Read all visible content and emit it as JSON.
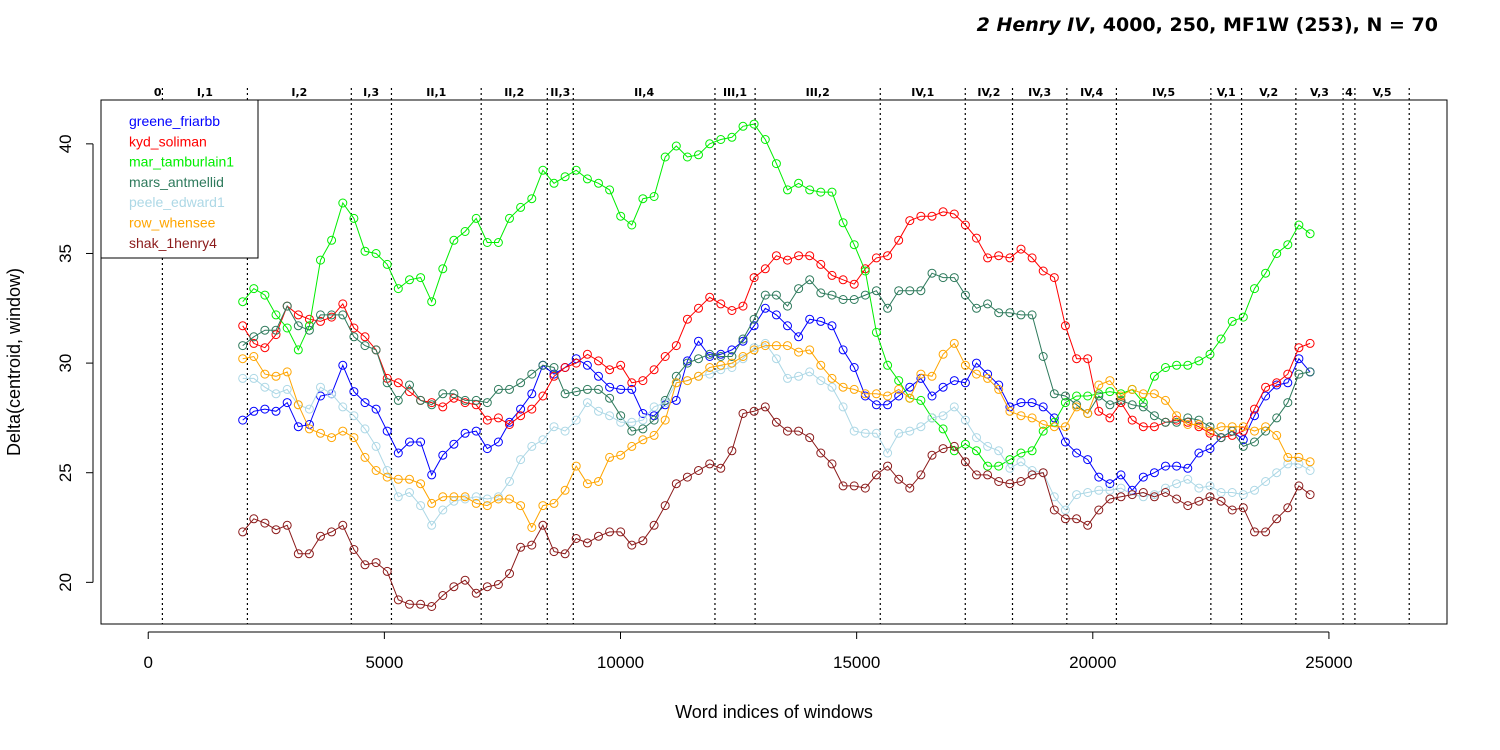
{
  "chart_data": {
    "type": "line",
    "title": {
      "italic_part": "2 Henry IV",
      "rest": ", 4000, 250, MF1W (253), N = 70"
    },
    "xlabel": "Word indices of windows",
    "ylabel": "Delta(centroid, window)",
    "xlim": [
      -1000,
      27500
    ],
    "ylim": [
      18.1,
      42
    ],
    "xticks": [
      0,
      5000,
      10000,
      15000,
      20000,
      25000
    ],
    "yticks": [
      20,
      25,
      30,
      35,
      40
    ],
    "legend_position": "top-left",
    "act_scene_boundaries": [
      {
        "x": 300,
        "label": "0",
        "label_x": 200
      },
      {
        "x": 2100,
        "label": "I,1",
        "label_x": 1200
      },
      {
        "x": 4300,
        "label": "I,2",
        "label_x": 3200
      },
      {
        "x": 5150,
        "label": "I,3",
        "label_x": 4720
      },
      {
        "x": 7050,
        "label": "II,1",
        "label_x": 6100
      },
      {
        "x": 8450,
        "label": "II,2",
        "label_x": 7750
      },
      {
        "x": 9000,
        "label": "II,3",
        "label_x": 8725
      },
      {
        "x": 12000,
        "label": "II,4",
        "label_x": 10500
      },
      {
        "x": 12850,
        "label": "III,1",
        "label_x": 12425
      },
      {
        "x": 15500,
        "label": "III,2",
        "label_x": 14175
      },
      {
        "x": 17300,
        "label": "IV,1",
        "label_x": 16400
      },
      {
        "x": 18300,
        "label": "IV,2",
        "label_x": 17800
      },
      {
        "x": 19450,
        "label": "IV,3",
        "label_x": 18875
      },
      {
        "x": 20500,
        "label": "IV,4",
        "label_x": 19975
      },
      {
        "x": 22500,
        "label": "IV,5",
        "label_x": 21500
      },
      {
        "x": 23150,
        "label": "V,1",
        "label_x": 22825
      },
      {
        "x": 24300,
        "label": "V,2",
        "label_x": 23725
      },
      {
        "x": 25300,
        "label": "V,3",
        "label_x": 24800
      },
      {
        "x": 25550,
        "label": "4",
        "label_x": 25425
      },
      {
        "x": 26700,
        "label": "V,5",
        "label_x": 26125
      }
    ],
    "series": [
      {
        "name": "greene_friarbb",
        "color": "#0000ff",
        "values": [
          27.4,
          27.8,
          27.9,
          27.8,
          28.2,
          27.1,
          27.2,
          28.5,
          28.6,
          29.9,
          28.7,
          28.2,
          27.9,
          26.9,
          25.9,
          26.4,
          26.4,
          24.9,
          25.8,
          26.3,
          26.8,
          26.9,
          26.1,
          26.4,
          27.3,
          27.9,
          28.6,
          29.9,
          29.5,
          29.8,
          30.2,
          29.9,
          29.4,
          28.9,
          28.8,
          28.8,
          27.7,
          27.6,
          28.1,
          28.3,
          30.1,
          31.0,
          30.3,
          30.4,
          30.6,
          31.0,
          31.7,
          32.5,
          32.2,
          31.7,
          31.2,
          32.0,
          31.9,
          31.7,
          30.6,
          29.8,
          28.5,
          28.1,
          28.1,
          28.5,
          28.9,
          29.3,
          28.5,
          28.9,
          29.2,
          29.1,
          30.0,
          29.5,
          29.0,
          28.0,
          28.2,
          28.2,
          28.0,
          27.5,
          26.4,
          25.9,
          25.6,
          24.8,
          24.5,
          24.9,
          24.2,
          24.8,
          25.0,
          25.3,
          25.3,
          25.2,
          25.9,
          26.1,
          26.6,
          26.9,
          26.5,
          27.6,
          28.5,
          29.0,
          29.1,
          30.2,
          29.6
        ]
      },
      {
        "name": "kyd_soliman",
        "color": "#ff0000",
        "values": [
          31.7,
          30.9,
          30.7,
          31.3,
          32.6,
          32.2,
          32.0,
          31.9,
          32.1,
          32.7,
          31.6,
          31.2,
          30.6,
          29.3,
          29.1,
          28.7,
          28.3,
          28.2,
          28.0,
          28.4,
          28.2,
          28.1,
          27.4,
          27.5,
          27.2,
          27.6,
          27.9,
          28.5,
          29.4,
          29.8,
          30.0,
          30.4,
          30.1,
          29.7,
          29.9,
          29.1,
          29.2,
          29.7,
          30.3,
          30.8,
          32.0,
          32.5,
          33.0,
          32.7,
          32.4,
          32.6,
          33.9,
          34.3,
          34.9,
          34.7,
          34.9,
          34.9,
          34.5,
          34.0,
          33.8,
          33.6,
          34.3,
          34.8,
          34.9,
          35.6,
          36.5,
          36.7,
          36.7,
          36.9,
          36.8,
          36.3,
          35.7,
          34.8,
          34.9,
          34.8,
          35.2,
          34.8,
          34.2,
          33.9,
          31.7,
          30.2,
          30.2,
          27.8,
          27.5,
          28.2,
          27.4,
          27.1,
          27.1,
          27.3,
          27.4,
          27.3,
          27.1,
          26.8,
          26.6,
          26.7,
          26.9,
          27.9,
          28.9,
          29.1,
          29.5,
          30.7,
          30.9
        ]
      },
      {
        "name": "mar_tamburlain1",
        "color": "#00ee00",
        "values": [
          32.8,
          33.4,
          33.1,
          32.2,
          31.6,
          30.6,
          31.7,
          34.7,
          35.6,
          37.3,
          36.6,
          35.1,
          35.0,
          34.5,
          33.4,
          33.8,
          33.9,
          32.8,
          34.3,
          35.6,
          36.0,
          36.6,
          35.5,
          35.5,
          36.6,
          37.1,
          37.5,
          38.8,
          38.2,
          38.5,
          38.8,
          38.4,
          38.2,
          37.9,
          36.7,
          36.3,
          37.5,
          37.6,
          39.4,
          39.9,
          39.4,
          39.5,
          40.0,
          40.2,
          40.3,
          40.8,
          40.9,
          40.2,
          39.1,
          37.9,
          38.2,
          37.9,
          37.8,
          37.8,
          36.4,
          35.4,
          34.2,
          31.4,
          29.9,
          29.2,
          28.4,
          28.3,
          27.5,
          27.0,
          26.0,
          26.3,
          26.0,
          25.3,
          25.3,
          25.6,
          25.9,
          26.0,
          26.9,
          27.3,
          28.2,
          28.5,
          28.5,
          28.6,
          28.7,
          28.6,
          28.8,
          28.2,
          29.4,
          29.8,
          29.9,
          29.9,
          30.1,
          30.4,
          31.1,
          31.9,
          32.1,
          33.4,
          34.1,
          35.0,
          35.4,
          36.3,
          35.9
        ]
      },
      {
        "name": "mars_antmellid",
        "color": "#2e7a5c",
        "values": [
          30.8,
          31.2,
          31.5,
          31.5,
          32.6,
          31.7,
          31.5,
          32.2,
          32.2,
          32.2,
          31.2,
          30.8,
          30.6,
          29.1,
          28.3,
          29.0,
          28.3,
          28.1,
          28.6,
          28.6,
          28.3,
          28.3,
          28.2,
          28.8,
          28.8,
          29.1,
          29.5,
          29.9,
          29.8,
          28.6,
          28.7,
          28.8,
          28.8,
          28.4,
          27.6,
          26.9,
          27.0,
          27.4,
          28.3,
          29.4,
          30.0,
          30.2,
          30.4,
          30.3,
          30.3,
          31.1,
          32.0,
          33.1,
          33.1,
          32.6,
          33.4,
          33.8,
          33.2,
          33.1,
          32.9,
          32.9,
          33.1,
          33.3,
          32.5,
          33.3,
          33.3,
          33.3,
          34.1,
          33.9,
          33.9,
          33.1,
          32.5,
          32.7,
          32.3,
          32.3,
          32.2,
          32.2,
          30.3,
          28.6,
          28.5,
          28.1,
          27.7,
          28.5,
          28.1,
          28.3,
          28.1,
          28.0,
          27.6,
          27.3,
          27.3,
          27.5,
          27.4,
          27.1,
          26.6,
          26.9,
          26.2,
          26.4,
          26.9,
          27.5,
          28.2,
          29.5,
          29.6
        ]
      },
      {
        "name": "peele_edward1",
        "color": "#add8e6",
        "values": [
          29.3,
          29.3,
          28.9,
          28.6,
          28.8,
          28.1,
          27.9,
          28.9,
          28.6,
          28.0,
          27.6,
          27.0,
          26.2,
          25.1,
          23.9,
          24.1,
          23.5,
          22.6,
          23.3,
          23.7,
          23.8,
          23.9,
          23.8,
          23.9,
          24.6,
          25.6,
          26.2,
          26.5,
          27.1,
          26.9,
          27.4,
          28.2,
          27.8,
          27.6,
          27.3,
          27.3,
          27.4,
          28.0,
          28.2,
          29.1,
          29.2,
          29.4,
          29.5,
          29.7,
          29.8,
          30.2,
          30.7,
          30.9,
          30.2,
          29.3,
          29.4,
          29.6,
          29.2,
          28.9,
          28.0,
          26.9,
          26.8,
          26.8,
          25.9,
          26.8,
          26.9,
          27.1,
          27.5,
          27.6,
          28.0,
          27.4,
          26.6,
          26.2,
          26.0,
          25.2,
          25.5,
          25.1,
          25.0,
          23.9,
          23.3,
          24.0,
          24.1,
          24.2,
          24.2,
          24.3,
          24.0,
          23.9,
          24.0,
          24.3,
          24.5,
          24.7,
          24.3,
          24.4,
          24.1,
          24.1,
          24.0,
          24.2,
          24.6,
          25.0,
          25.4,
          25.4,
          25.1
        ]
      },
      {
        "name": "row_whensee",
        "color": "#ffa500",
        "values": [
          30.2,
          30.3,
          29.5,
          29.4,
          29.6,
          28.1,
          27.0,
          26.8,
          26.6,
          26.9,
          26.6,
          25.7,
          25.1,
          24.8,
          24.7,
          24.7,
          24.5,
          23.6,
          23.9,
          23.9,
          23.9,
          23.6,
          23.5,
          23.8,
          23.8,
          23.5,
          22.5,
          23.5,
          23.6,
          24.2,
          25.3,
          24.5,
          24.6,
          25.7,
          25.8,
          26.2,
          26.5,
          26.7,
          27.4,
          29.1,
          29.2,
          29.4,
          29.8,
          29.9,
          30.0,
          30.3,
          30.6,
          30.8,
          30.8,
          30.8,
          30.5,
          30.6,
          29.9,
          29.3,
          28.9,
          28.8,
          28.6,
          28.6,
          28.5,
          28.8,
          28.4,
          29.5,
          29.4,
          30.4,
          30.9,
          29.9,
          29.5,
          29.3,
          28.8,
          27.8,
          27.6,
          27.5,
          27.2,
          27.1,
          27.1,
          28.0,
          27.7,
          29.0,
          29.2,
          28.5,
          28.8,
          28.6,
          28.6,
          28.3,
          27.6,
          27.2,
          27.2,
          26.9,
          27.1,
          27.1,
          27.1,
          26.9,
          27.1,
          26.7,
          25.7,
          25.7,
          25.5
        ]
      },
      {
        "name": "shak_1henry4",
        "color": "#8b1a1a",
        "values": [
          22.3,
          22.9,
          22.7,
          22.4,
          22.6,
          21.3,
          21.3,
          22.1,
          22.3,
          22.6,
          21.5,
          20.8,
          20.9,
          20.5,
          19.2,
          19.0,
          19.0,
          18.9,
          19.4,
          19.8,
          20.1,
          19.5,
          19.8,
          19.9,
          20.4,
          21.6,
          21.7,
          22.6,
          21.4,
          21.3,
          22.0,
          21.8,
          22.1,
          22.3,
          22.3,
          21.7,
          21.9,
          22.6,
          23.5,
          24.5,
          24.8,
          25.1,
          25.4,
          25.2,
          26.0,
          27.7,
          27.8,
          28.0,
          27.3,
          26.9,
          26.9,
          26.6,
          25.9,
          25.4,
          24.4,
          24.4,
          24.3,
          24.9,
          25.3,
          24.7,
          24.3,
          24.9,
          25.8,
          26.1,
          26.2,
          25.5,
          24.9,
          24.9,
          24.6,
          24.5,
          24.6,
          24.9,
          25.0,
          23.3,
          22.9,
          22.9,
          22.6,
          23.3,
          23.8,
          23.9,
          24.0,
          24.1,
          23.9,
          24.1,
          23.8,
          23.5,
          23.7,
          23.9,
          23.7,
          23.3,
          23.4,
          22.3,
          22.3,
          22.9,
          23.4,
          24.4,
          24.0
        ]
      }
    ],
    "x_start": 2000,
    "x_step": 235.42
  }
}
